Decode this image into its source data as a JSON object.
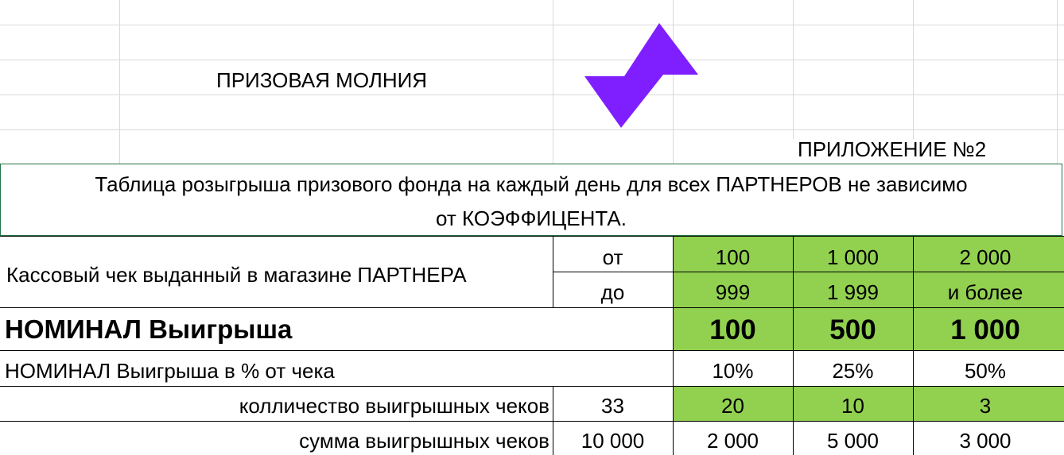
{
  "header": {
    "title": "ПРИЗОВАЯ МОЛНИЯ",
    "appendix": "ПРИЛОЖЕНИЕ №2",
    "logo_color": "#7f1fff"
  },
  "banner": {
    "line1": "Таблица розыгрыша призового фонда на каждый день для всех ПАРТНЕРОВ не зависимо",
    "line2": "от КОЭФФИЦЕНТА."
  },
  "table": {
    "receipt_label": "Кассовый чек выданный в магазине ПАРТНЕРА",
    "from_label": "от",
    "to_label": "до",
    "from_values": [
      "100",
      "1 000",
      "2 000"
    ],
    "to_values": [
      "999",
      "1 999",
      "и более"
    ],
    "nominal_label": "НОМИНАЛ Выигрыша",
    "nominal_values": [
      "100",
      "500",
      "1 000"
    ],
    "percent_label": "НОМИНАЛ Выигрыша в % от чека",
    "percent_values": [
      "10%",
      "25%",
      "50%"
    ],
    "count_label": "колличество выигрышных чеков",
    "count_total": "33",
    "count_values": [
      "20",
      "10",
      "3"
    ],
    "sum_label": "сумма выигрышных чеков",
    "sum_total": "10 000",
    "sum_values": [
      "2 000",
      "5 000",
      "3 000"
    ]
  },
  "colors": {
    "green_fill": "#92d050",
    "grid_line": "#d9d9d9",
    "banner_border": "#217346"
  }
}
